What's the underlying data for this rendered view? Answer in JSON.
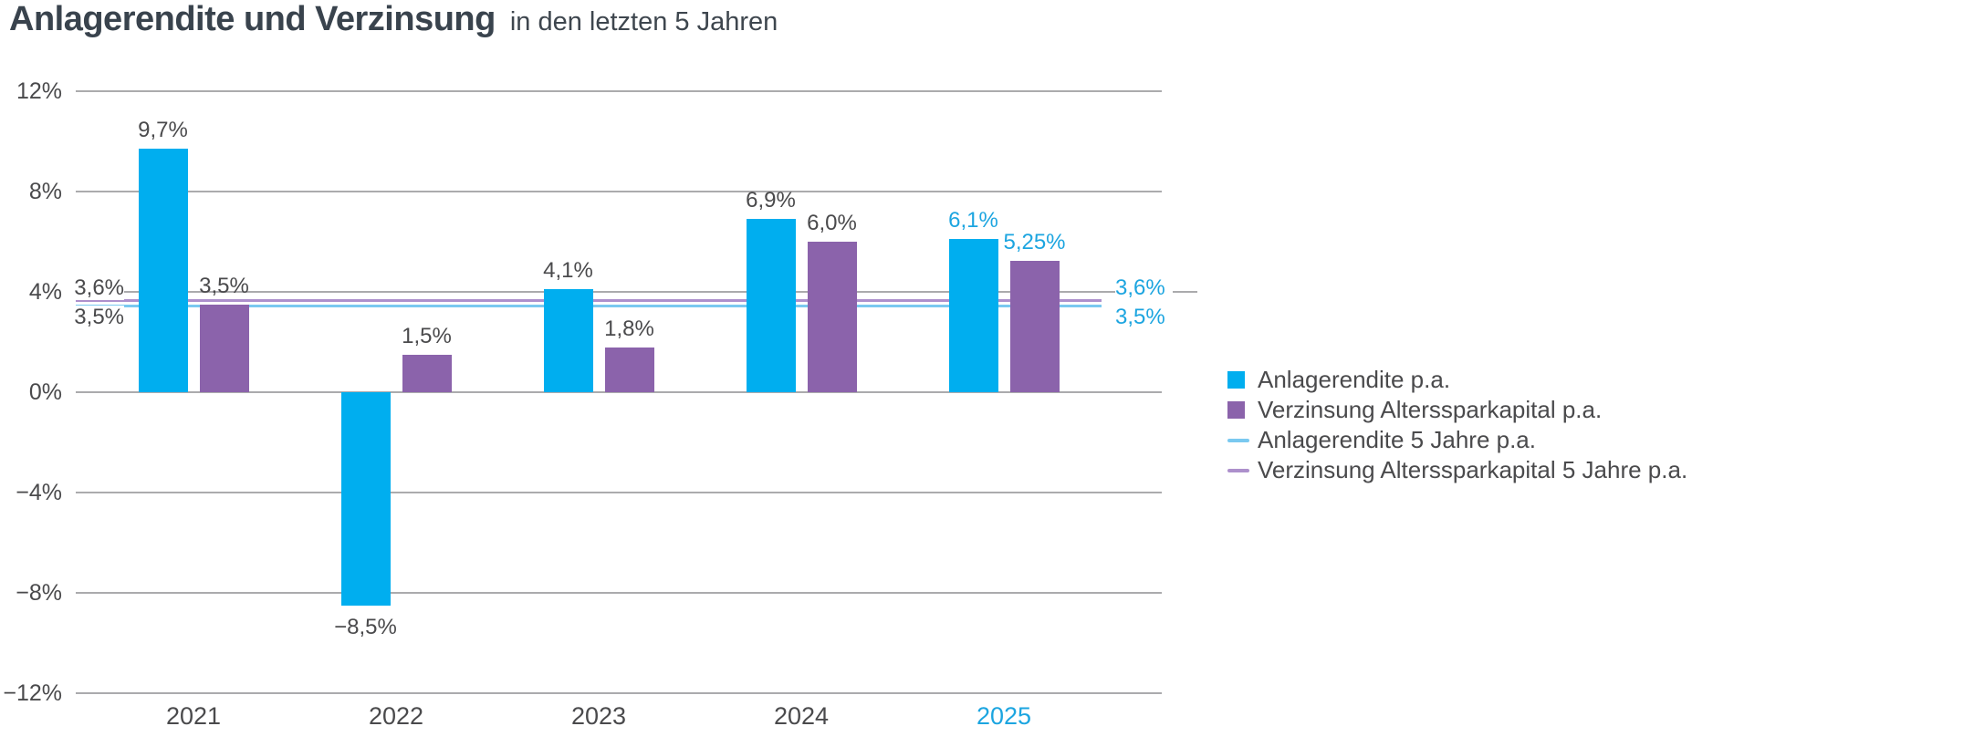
{
  "page": {
    "title": "Anlagerendite und Verzinsung",
    "subtitle": "in den letzten 5 Jahren"
  },
  "chart_data": {
    "type": "bar",
    "title": "Anlagerendite und Verzinsung",
    "subtitle": "in den letzten 5 Jahren",
    "categories": [
      "2021",
      "2022",
      "2023",
      "2024",
      "2025"
    ],
    "highlighted_category": "2025",
    "series": [
      {
        "name": "Anlagerendite p.a.",
        "color": "#00AEEF",
        "values": [
          9.7,
          -8.5,
          4.1,
          6.9,
          6.1
        ],
        "labels": [
          "9,7%",
          "−8,5%",
          "4,1%",
          "6,9%",
          "6,1%"
        ]
      },
      {
        "name": "Verzinsung Alterssparkapital p.a.",
        "color": "#8B63AB",
        "values": [
          3.5,
          1.5,
          1.8,
          6.0,
          5.25
        ],
        "labels": [
          "3,5%",
          "1,5%",
          "1,8%",
          "6,0%",
          "5,25%"
        ]
      }
    ],
    "reference_lines": [
      {
        "name": "Verzinsung Alterssparkapital 5 Jahre p.a.",
        "value": 3.6,
        "label": "3,6%",
        "color": "#AD90CC"
      },
      {
        "name": "Anlagerendite 5 Jahre p.a.",
        "value": 3.5,
        "label": "3,5%",
        "color": "#7AC9F0"
      }
    ],
    "y_axis": {
      "ticks": [
        12,
        8,
        4,
        0,
        -4,
        -8,
        -12
      ],
      "tick_labels": [
        "12%",
        "8%",
        "4%",
        "0%",
        "−4%",
        "−8%",
        "−12%"
      ],
      "ylim": [
        -12,
        12
      ],
      "grid": true
    },
    "legend": {
      "position": "right",
      "entries": [
        {
          "label": "Anlagerendite p.a.",
          "marker": "square",
          "color": "#00AEEF"
        },
        {
          "label": "Verzinsung Alterssparkapital p.a.",
          "marker": "square",
          "color": "#8B63AB"
        },
        {
          "label": "Anlagerendite 5 Jahre p.a.",
          "marker": "line",
          "color": "#7AC9F0"
        },
        {
          "label": "Verzinsung Alterssparkapital 5 Jahre p.a.",
          "marker": "line",
          "color": "#AD90CC"
        }
      ]
    },
    "colors": {
      "label_default": "#4a4a4c",
      "label_highlight": "#1CA5E0",
      "gridline": "#ababad"
    }
  }
}
